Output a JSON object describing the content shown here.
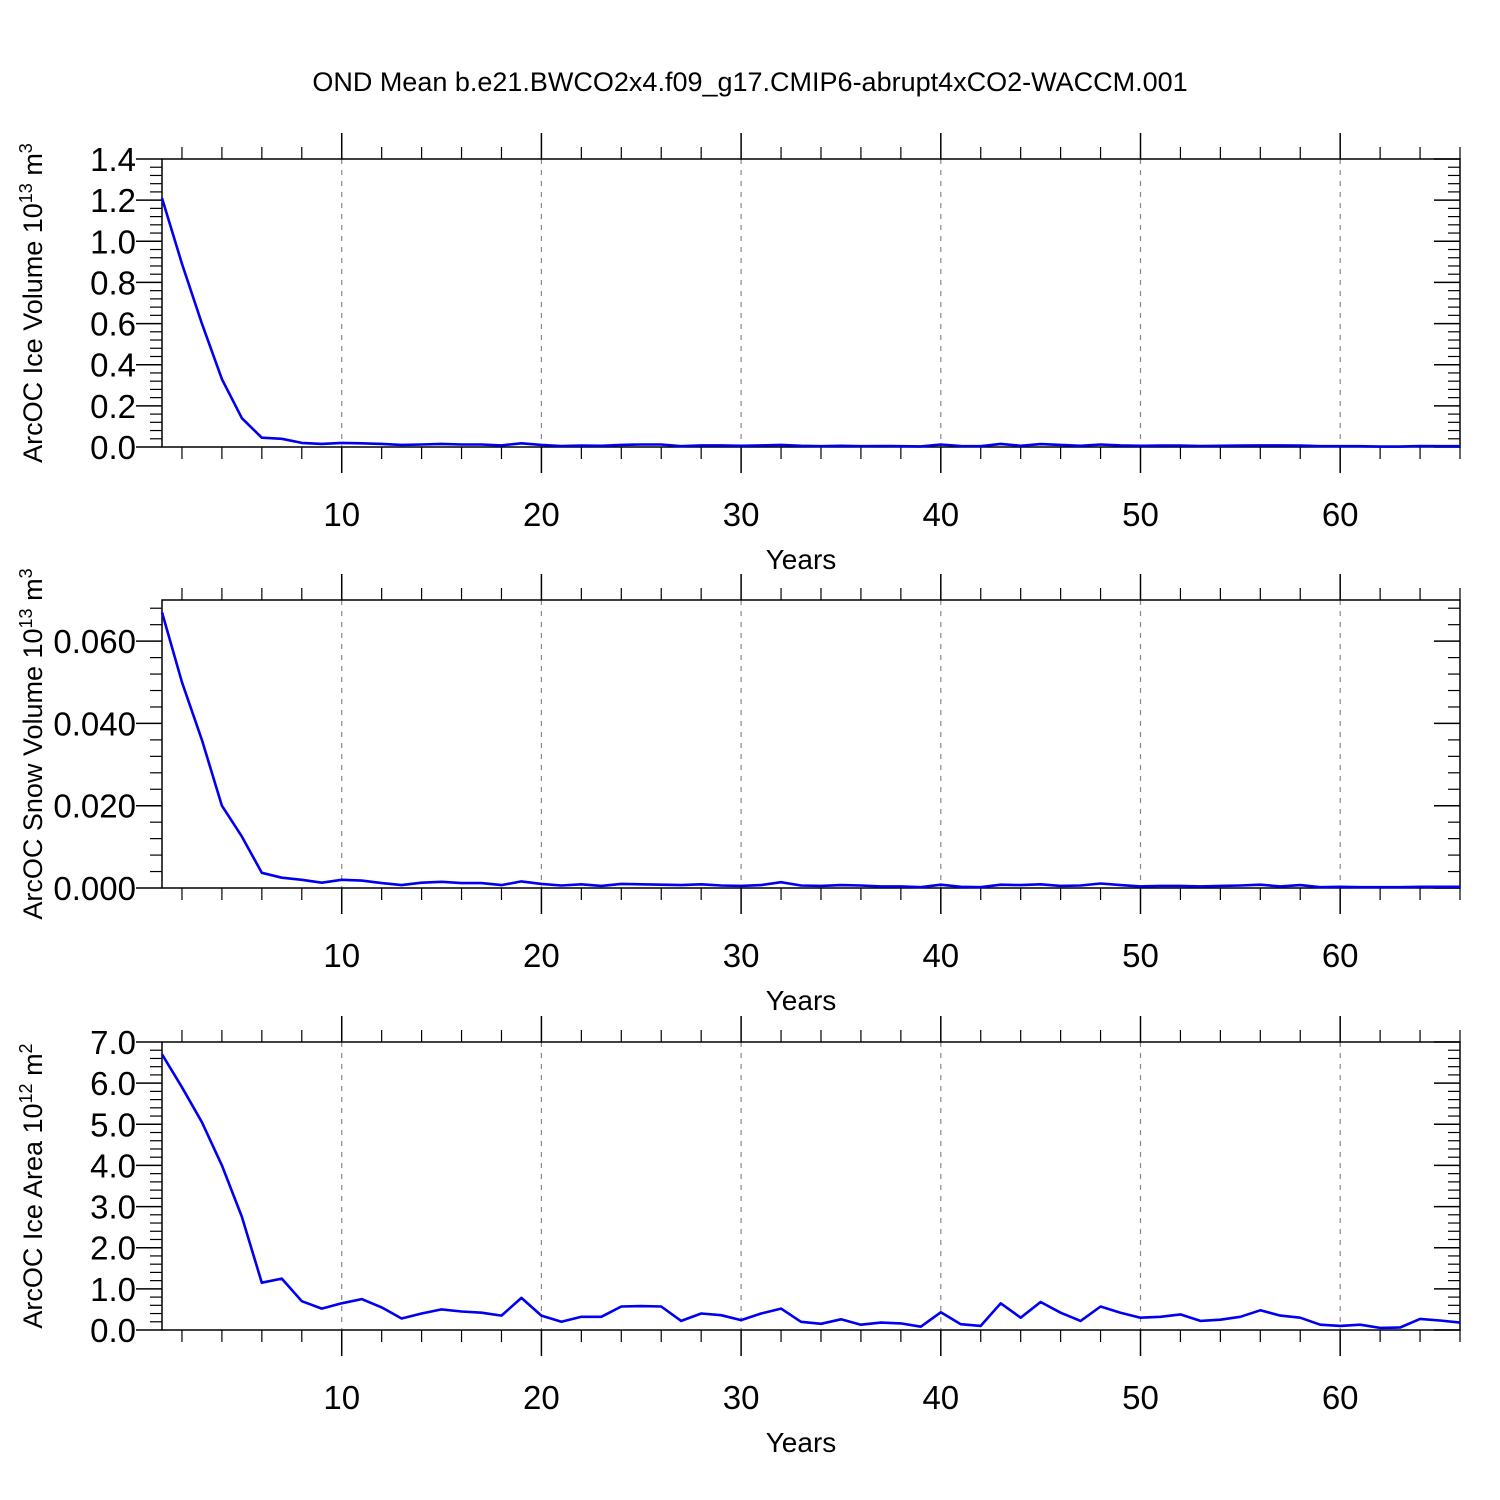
{
  "figure": {
    "title": "OND Mean b.e21.BWCO2x4.f09_g17.CMIP6-abrupt4xCO2-WACCM.001"
  },
  "chart_data": [
    {
      "type": "line",
      "ylabel": {
        "base": "ArcOC Ice Volume 10",
        "exp": "13",
        "unit": " m",
        "unit_exp": "3"
      },
      "xlabel": "Years",
      "xlim": [
        1,
        66
      ],
      "ylim": [
        0,
        1.4
      ],
      "xticks": [
        10,
        20,
        30,
        40,
        50,
        60
      ],
      "xtick_labels": [
        "10",
        "20",
        "30",
        "40",
        "50",
        "60"
      ],
      "yticks": [
        0,
        0.2,
        0.4,
        0.6,
        0.8,
        1.0,
        1.2,
        1.4
      ],
      "ytick_labels": [
        "0.0",
        "0.2",
        "0.4",
        "0.6",
        "0.8",
        "1.0",
        "1.2",
        "1.4"
      ],
      "grid": "x-dashed",
      "line_color": "#0000ee",
      "series": [
        {
          "values": [
            1.21,
            0.89,
            0.6,
            0.33,
            0.14,
            0.045,
            0.04,
            0.02,
            0.015,
            0.02,
            0.018,
            0.015,
            0.01,
            0.012,
            0.015,
            0.012,
            0.012,
            0.008,
            0.018,
            0.01,
            0.005,
            0.007,
            0.006,
            0.01,
            0.012,
            0.012,
            0.004,
            0.008,
            0.008,
            0.006,
            0.008,
            0.01,
            0.006,
            0.004,
            0.006,
            0.004,
            0.005,
            0.004,
            0.003,
            0.012,
            0.005,
            0.004,
            0.015,
            0.006,
            0.014,
            0.01,
            0.006,
            0.012,
            0.008,
            0.006,
            0.007,
            0.007,
            0.005,
            0.006,
            0.007,
            0.008,
            0.008,
            0.007,
            0.004,
            0.004,
            0.004,
            0.002,
            0.002,
            0.005,
            0.004,
            0.004
          ]
        }
      ]
    },
    {
      "type": "line",
      "ylabel": {
        "base": "ArcOC Snow Volume 10",
        "exp": "13",
        "unit": " m",
        "unit_exp": "3"
      },
      "xlabel": "Years",
      "xlim": [
        1,
        66
      ],
      "ylim": [
        0,
        0.07
      ],
      "xticks": [
        10,
        20,
        30,
        40,
        50,
        60
      ],
      "xtick_labels": [
        "10",
        "20",
        "30",
        "40",
        "50",
        "60"
      ],
      "yticks": [
        0,
        0.02,
        0.04,
        0.06
      ],
      "ytick_labels": [
        "0.000",
        "0.020",
        "0.040",
        "0.060"
      ],
      "grid": "x-dashed",
      "line_color": "#0000ee",
      "series": [
        {
          "values": [
            0.067,
            0.05,
            0.036,
            0.02,
            0.0125,
            0.0037,
            0.0025,
            0.002,
            0.0013,
            0.002,
            0.0018,
            0.0012,
            0.0007,
            0.0013,
            0.0015,
            0.0012,
            0.0012,
            0.0007,
            0.0016,
            0.001,
            0.0006,
            0.0009,
            0.0005,
            0.001,
            0.0009,
            0.0008,
            0.0007,
            0.0009,
            0.0006,
            0.0005,
            0.0007,
            0.0014,
            0.0006,
            0.0005,
            0.0007,
            0.0006,
            0.0004,
            0.0004,
            0.0002,
            0.0008,
            0.0003,
            0.0002,
            0.0008,
            0.0007,
            0.0009,
            0.0005,
            0.0006,
            0.0011,
            0.0007,
            0.0004,
            0.0005,
            0.0005,
            0.0004,
            0.0005,
            0.0006,
            0.0008,
            0.0004,
            0.0007,
            0.0002,
            0.0003,
            0.0002,
            0.0002,
            0.0002,
            0.0003,
            0.0003,
            0.0003
          ]
        }
      ]
    },
    {
      "type": "line",
      "ylabel": {
        "base": "ArcOC Ice Area 10",
        "exp": "12",
        "unit": " m",
        "unit_exp": "2"
      },
      "xlabel": "Years",
      "xlim": [
        1,
        66
      ],
      "ylim": [
        0,
        7
      ],
      "xticks": [
        10,
        20,
        30,
        40,
        50,
        60
      ],
      "xtick_labels": [
        "10",
        "20",
        "30",
        "40",
        "50",
        "60"
      ],
      "yticks": [
        0,
        1,
        2,
        3,
        4,
        5,
        6,
        7
      ],
      "ytick_labels": [
        "0.0",
        "1.0",
        "2.0",
        "3.0",
        "4.0",
        "5.0",
        "6.0",
        "7.0"
      ],
      "grid": "x-dashed",
      "line_color": "#0000ee",
      "series": [
        {
          "values": [
            6.7,
            5.9,
            5.05,
            4.0,
            2.75,
            1.15,
            1.25,
            0.7,
            0.52,
            0.65,
            0.75,
            0.55,
            0.28,
            0.4,
            0.5,
            0.45,
            0.42,
            0.35,
            0.78,
            0.35,
            0.2,
            0.32,
            0.32,
            0.57,
            0.58,
            0.57,
            0.22,
            0.4,
            0.36,
            0.24,
            0.4,
            0.52,
            0.2,
            0.15,
            0.26,
            0.13,
            0.18,
            0.16,
            0.08,
            0.43,
            0.14,
            0.1,
            0.65,
            0.3,
            0.68,
            0.42,
            0.22,
            0.57,
            0.42,
            0.3,
            0.32,
            0.38,
            0.22,
            0.25,
            0.32,
            0.48,
            0.35,
            0.3,
            0.13,
            0.1,
            0.13,
            0.05,
            0.06,
            0.27,
            0.23,
            0.18
          ]
        }
      ]
    }
  ]
}
